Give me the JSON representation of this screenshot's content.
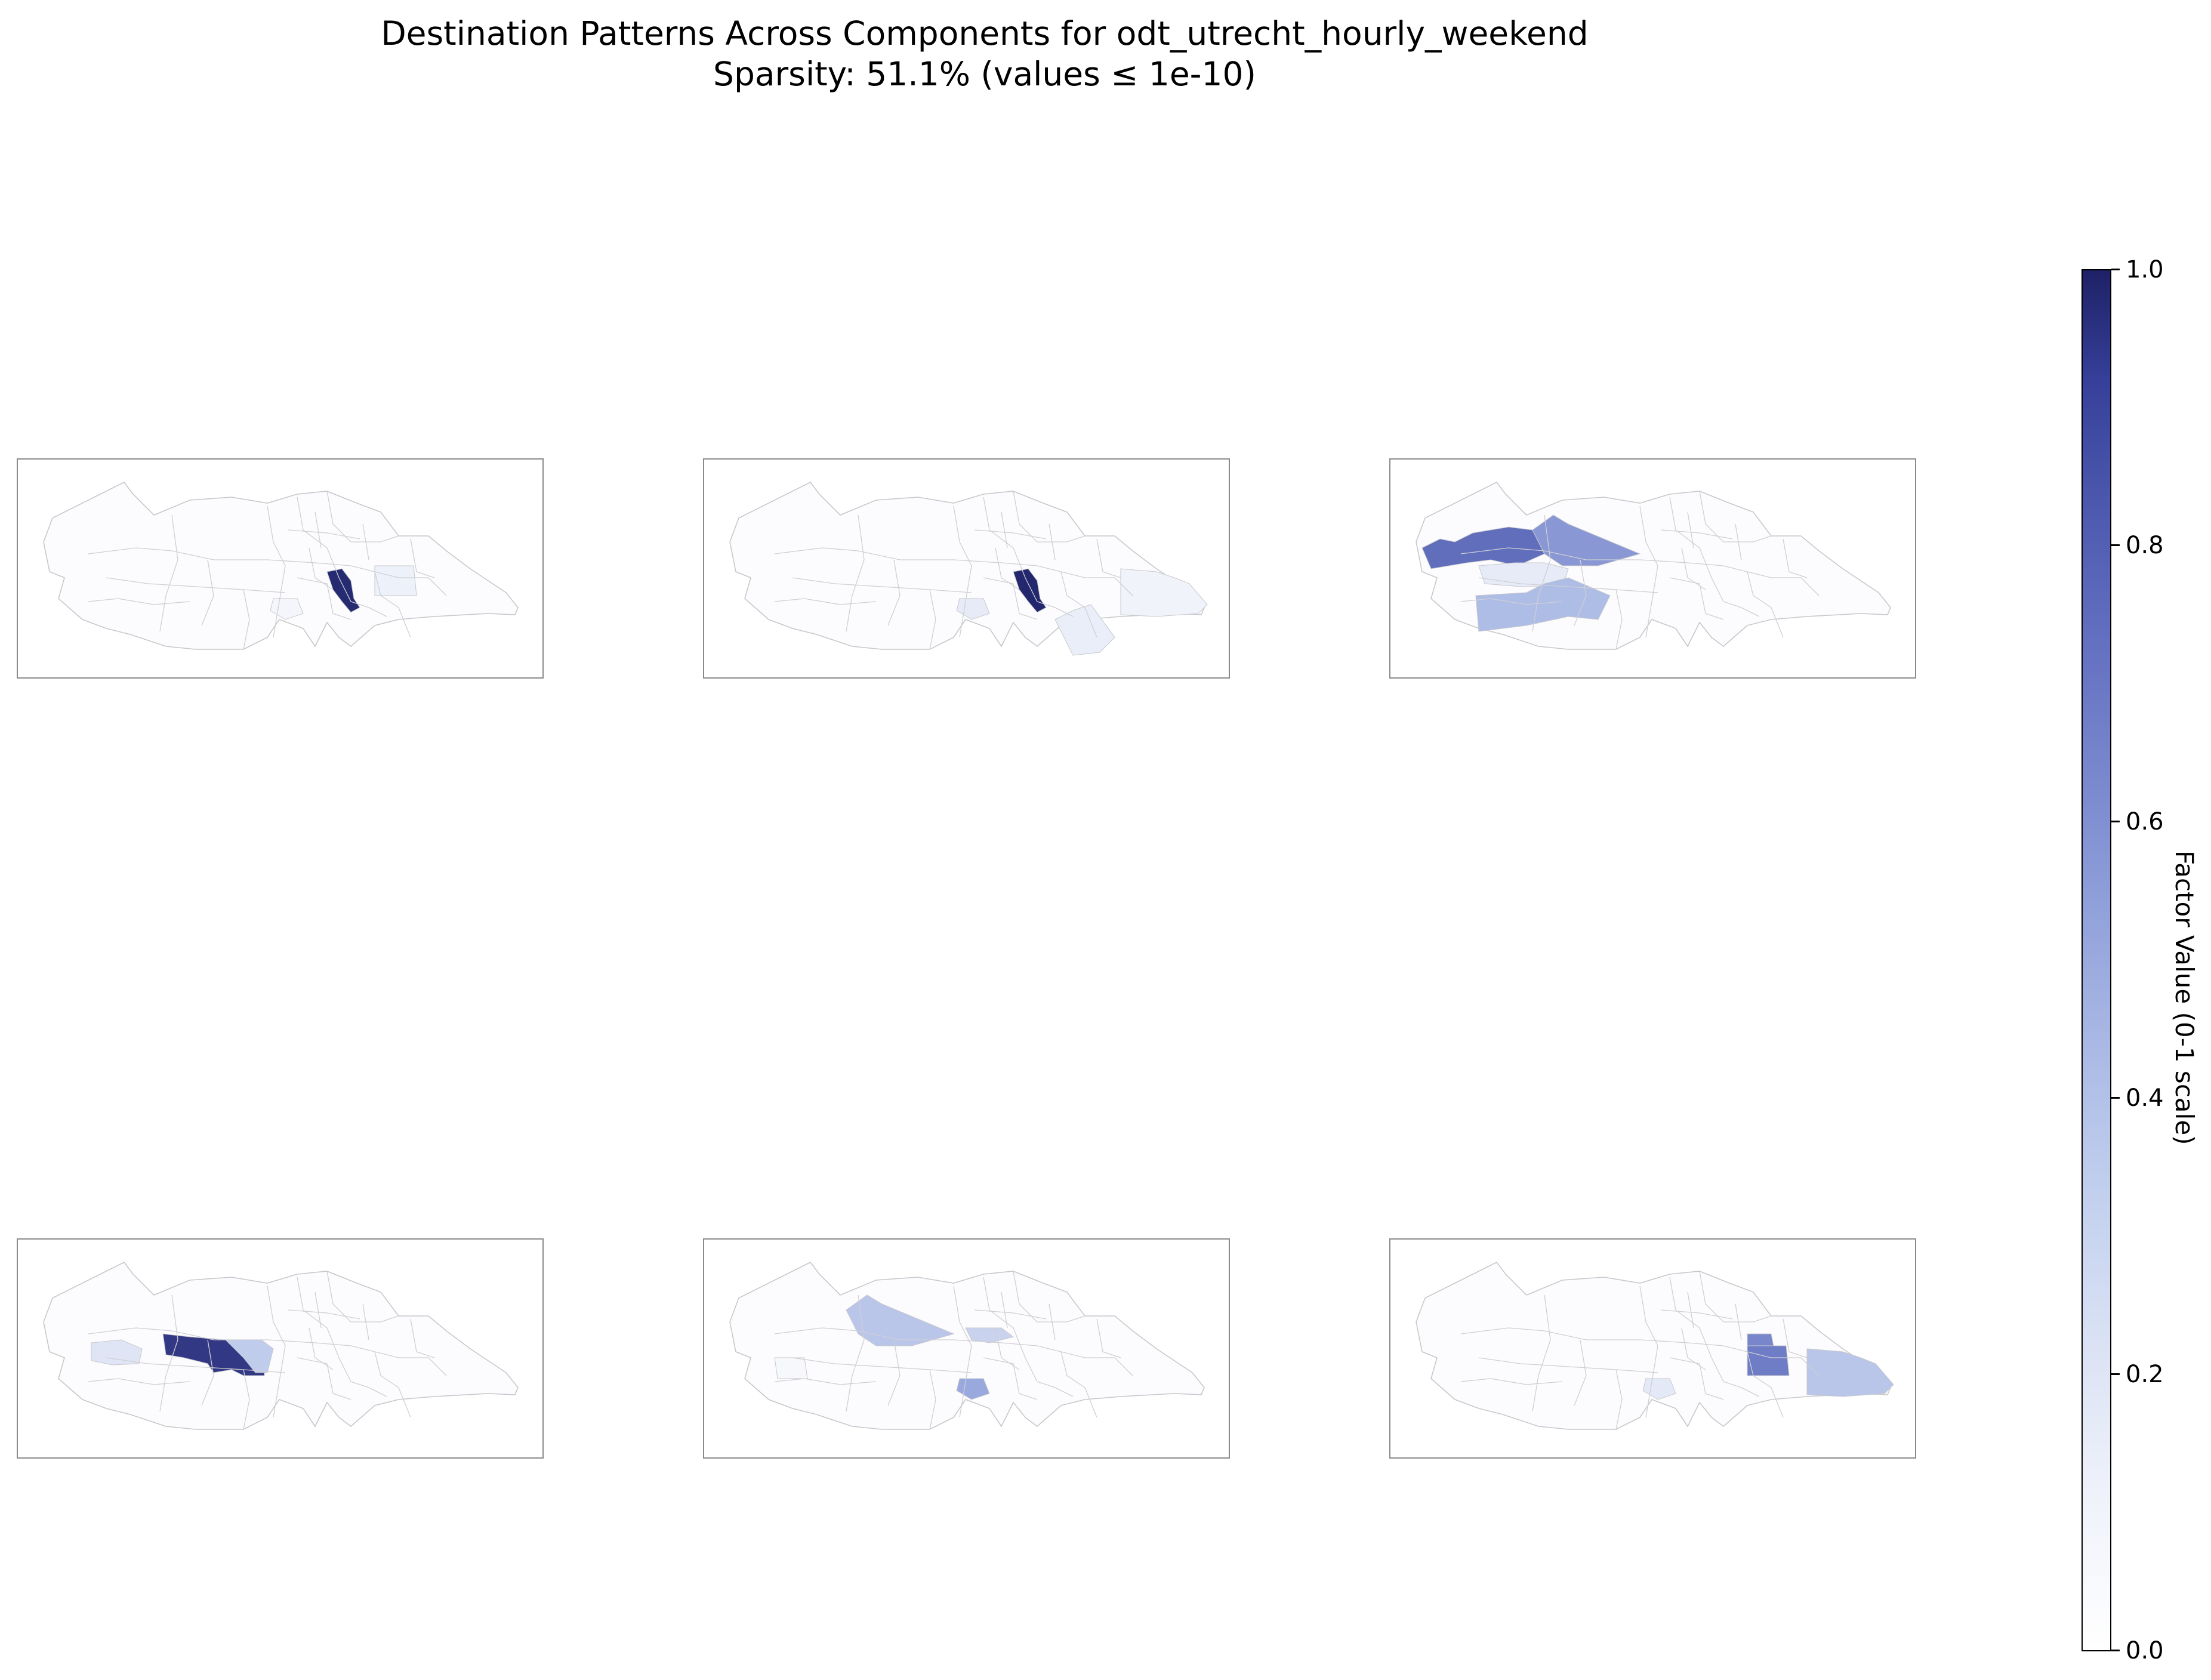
{
  "figure": {
    "title_line1": "Destination Patterns Across Components for odt_utrecht_hourly_weekend",
    "title_line2": "Sparsity: 51.1% (values ≤ 1e-10)"
  },
  "colorbar": {
    "label": "Factor Value (0-1 scale)",
    "ticks": [
      "0.0",
      "0.2",
      "0.4",
      "0.6",
      "0.8",
      "1.0"
    ],
    "colors": [
      "#ffffff",
      "#dbe2f4",
      "#aebde6",
      "#7c8bcf",
      "#4f5bb0",
      "#1e2166"
    ]
  },
  "panels": [
    {
      "id": "component-1",
      "highlights": [
        {
          "region": "central-east",
          "value": 0.97
        },
        {
          "region": "east-center",
          "value": 0.1
        },
        {
          "region": "south-center",
          "value": 0.06
        }
      ]
    },
    {
      "id": "component-2",
      "highlights": [
        {
          "region": "central-east",
          "value": 0.98
        },
        {
          "region": "far-east",
          "value": 0.08
        },
        {
          "region": "south-east",
          "value": 0.12
        },
        {
          "region": "south-center",
          "value": 0.14
        }
      ]
    },
    {
      "id": "component-3",
      "highlights": [
        {
          "region": "north-west",
          "value": 0.72
        },
        {
          "region": "north-center",
          "value": 0.55
        },
        {
          "region": "west-center",
          "value": 0.14
        },
        {
          "region": "south-west",
          "value": 0.4
        }
      ]
    },
    {
      "id": "component-4",
      "highlights": [
        {
          "region": "west",
          "value": 0.18
        },
        {
          "region": "center-west",
          "value": 0.92
        },
        {
          "region": "center",
          "value": 0.32
        }
      ]
    },
    {
      "id": "component-5",
      "highlights": [
        {
          "region": "north-center",
          "value": 0.35
        },
        {
          "region": "south-center",
          "value": 0.48
        },
        {
          "region": "center-south",
          "value": 0.28
        },
        {
          "region": "far-west",
          "value": 0.05
        }
      ]
    },
    {
      "id": "component-6",
      "highlights": [
        {
          "region": "north-east",
          "value": 0.62
        },
        {
          "region": "east-center",
          "value": 0.66
        },
        {
          "region": "far-east",
          "value": 0.35
        },
        {
          "region": "south-center",
          "value": 0.15
        }
      ]
    }
  ]
}
